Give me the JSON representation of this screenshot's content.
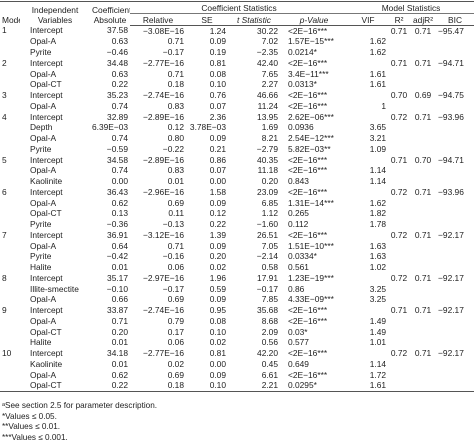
{
  "header": {
    "models": "Models",
    "variables": "Independent Variables",
    "absolute": "Coefficients Absolute",
    "coef_group": "Coefficient Statistics",
    "model_group": "Model Statistics",
    "relative": "Relative",
    "se": "SE",
    "t": "t Statistic",
    "p": "p-Value",
    "vif": "VIF",
    "r2": "R²",
    "adjr2": "adjR²",
    "bic": "BIC"
  },
  "models": [
    {
      "id": "1",
      "r2": "0.71",
      "adjr2": "0.71",
      "bic": "−95.47",
      "rows": [
        [
          "Intercept",
          "37.58",
          "−3.08E−16",
          "1.24",
          "30.22",
          "<2E−16***",
          ""
        ],
        [
          "Opal-A",
          "0.63",
          "0.71",
          "0.09",
          "7.02",
          "1.57E−15***",
          "1.62"
        ],
        [
          "Pyrite",
          "−0.46",
          "−0.17",
          "0.19",
          "−2.35",
          "0.0214*",
          "1.62"
        ]
      ]
    },
    {
      "id": "2",
      "r2": "0.71",
      "adjr2": "0.71",
      "bic": "−94.71",
      "rows": [
        [
          "Intercept",
          "34.48",
          "−2.77E−16",
          "0.81",
          "42.40",
          "<2E−16***",
          ""
        ],
        [
          "Opal-A",
          "0.63",
          "0.71",
          "0.08",
          "7.65",
          "3.4E−11***",
          "1.61"
        ],
        [
          "Opal-CT",
          "0.22",
          "0.18",
          "0.10",
          "2.27",
          "0.0313*",
          "1.61"
        ]
      ]
    },
    {
      "id": "3",
      "r2": "0.70",
      "adjr2": "0.69",
      "bic": "−94.75",
      "rows": [
        [
          "Intercept",
          "35.23",
          "−2.74E−16",
          "0.76",
          "46.66",
          "<2E−16***",
          ""
        ],
        [
          "Opal-A",
          "0.74",
          "0.83",
          "0.07",
          "11.24",
          "<2E−16***",
          "1"
        ]
      ]
    },
    {
      "id": "4",
      "r2": "0.72",
      "adjr2": "0.71",
      "bic": "−93.96",
      "rows": [
        [
          "Intercept",
          "32.89",
          "−2.89E−16",
          "2.36",
          "13.95",
          "2.62E−06***",
          ""
        ],
        [
          "Depth",
          "6.39E−03",
          "0.12",
          "3.78E−03",
          "1.69",
          "0.0936",
          "3.65"
        ],
        [
          "Opal-A",
          "0.74",
          "0.80",
          "0.09",
          "8.21",
          "2.54E−12***",
          "3.21"
        ],
        [
          "Pyrite",
          "−0.59",
          "−0.22",
          "0.21",
          "−2.79",
          "5.82E−03**",
          "1.09"
        ]
      ]
    },
    {
      "id": "5",
      "r2": "0.71",
      "adjr2": "0.70",
      "bic": "−94.71",
      "rows": [
        [
          "Intercept",
          "34.58",
          "−2.89E−16",
          "0.86",
          "40.35",
          "<2E−16***",
          ""
        ],
        [
          "Opal-A",
          "0.74",
          "0.83",
          "0.07",
          "11.18",
          "<2E−16***",
          "1.14"
        ],
        [
          "Kaolinite",
          "0.00",
          "0.01",
          "0.00",
          "0.20",
          "0.843",
          "1.14"
        ]
      ]
    },
    {
      "id": "6",
      "r2": "0.72",
      "adjr2": "0.71",
      "bic": "−93.96",
      "rows": [
        [
          "Intercept",
          "36.43",
          "−2.96E−16",
          "1.58",
          "23.09",
          "<2E−16***",
          ""
        ],
        [
          "Opal-A",
          "0.62",
          "0.69",
          "0.09",
          "6.85",
          "1.31E−14***",
          "1.62"
        ],
        [
          "Opal-CT",
          "0.13",
          "0.11",
          "0.12",
          "1.12",
          "0.265",
          "1.82"
        ],
        [
          "Pyrite",
          "−0.36",
          "−0.13",
          "0.22",
          "−1.60",
          "0.112",
          "1.78"
        ]
      ]
    },
    {
      "id": "7",
      "r2": "0.72",
      "adjr2": "0.71",
      "bic": "−92.17",
      "rows": [
        [
          "Intercept",
          "36.91",
          "−3.12E−16",
          "1.39",
          "26.51",
          "<2E−16***",
          ""
        ],
        [
          "Opal-A",
          "0.64",
          "0.71",
          "0.09",
          "7.05",
          "1.51E−10***",
          "1.63"
        ],
        [
          "Pyrite",
          "−0.42",
          "−0.16",
          "0.20",
          "−2.14",
          "0.0334*",
          "1.63"
        ],
        [
          "Halite",
          "0.01",
          "0.06",
          "0.02",
          "0.58",
          "0.561",
          "1.02"
        ]
      ]
    },
    {
      "id": "8",
      "r2": "0.72",
      "adjr2": "0.71",
      "bic": "−92.17",
      "rows": [
        [
          "Intercept",
          "35.17",
          "−2.97E−16",
          "1.96",
          "17.91",
          "1.23E−19***",
          ""
        ],
        [
          "Illite-smectite",
          "−0.10",
          "−0.17",
          "0.59",
          "−0.17",
          "0.86",
          "3.25"
        ],
        [
          "Opal-A",
          "0.66",
          "0.69",
          "0.09",
          "7.85",
          "4.33E−09***",
          "3.25"
        ]
      ]
    },
    {
      "id": "9",
      "r2": "0.71",
      "adjr2": "0.71",
      "bic": "−92.17",
      "rows": [
        [
          "Intercept",
          "33.87",
          "−2.74E−16",
          "0.95",
          "35.68",
          "<2E−16***",
          ""
        ],
        [
          "Opal-A",
          "0.71",
          "0.79",
          "0.08",
          "8.68",
          "<2E−16***",
          "1.49"
        ],
        [
          "Opal-CT",
          "0.20",
          "0.17",
          "0.10",
          "2.09",
          "0.03*",
          "1.49"
        ],
        [
          "Halite",
          "0.01",
          "0.06",
          "0.02",
          "0.56",
          "0.577",
          "1.01"
        ]
      ]
    },
    {
      "id": "10",
      "r2": "0.72",
      "adjr2": "0.71",
      "bic": "−92.17",
      "rows": [
        [
          "Intercept",
          "34.18",
          "−2.77E−16",
          "0.81",
          "42.20",
          "<2E−16***",
          ""
        ],
        [
          "Kaolinite",
          "0.01",
          "0.02",
          "0.00",
          "0.45",
          "0.649",
          "1.14"
        ],
        [
          "Opal-A",
          "0.62",
          "0.69",
          "0.09",
          "6.61",
          "<2E−16***",
          "1.72"
        ],
        [
          "Opal-CT",
          "0.22",
          "0.18",
          "0.10",
          "2.21",
          "0.0295*",
          "1.61"
        ]
      ]
    }
  ],
  "footnotes": [
    "ᵃSee section 2.5 for parameter description.",
    "*Values ≤ 0.05.",
    "**Values ≤ 0.01.",
    "***Values ≤ 0.001."
  ]
}
